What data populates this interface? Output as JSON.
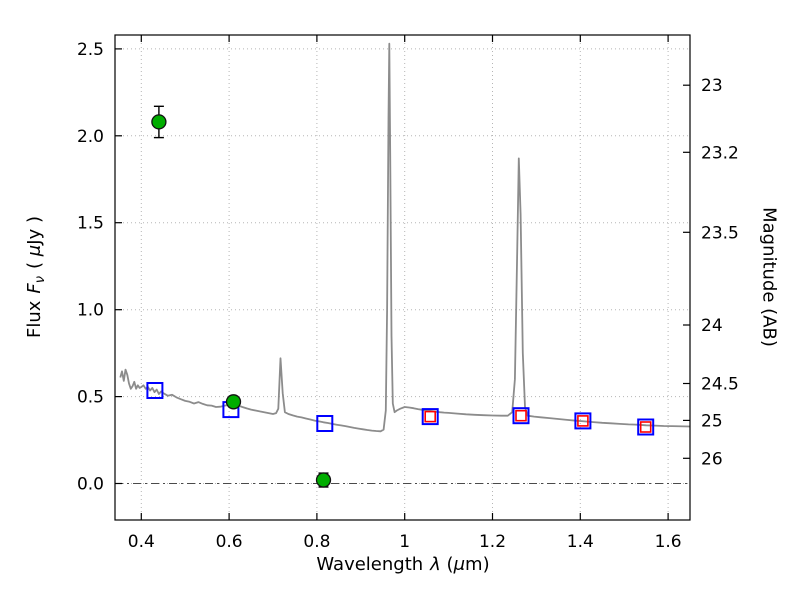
{
  "figure": {
    "background": "#ffffff"
  },
  "axis_labels": {
    "x": {
      "pre": "Wavelength",
      "symbol": "λ",
      "post": " (",
      "mu": "μ",
      "unit": "m)"
    },
    "left": {
      "pre": "Flux",
      "symbol": "F",
      "subscript": "ν",
      "open": "( ",
      "mu": "μ",
      "unit": "Jy )"
    },
    "right": "Magnitude (AB)"
  },
  "chart_data": {
    "type": "line",
    "title": "",
    "xlabel": "Wavelength λ (μm)",
    "ylabel": "Flux Fν ( μJy )",
    "ylabel_right": "Magnitude (AB)",
    "xlim": [
      0.34,
      1.65
    ],
    "ylim": [
      -0.21,
      2.58
    ],
    "grid": true,
    "legend": "none",
    "x_ticks": {
      "values": [
        0.4,
        0.6,
        0.8,
        1.0,
        1.2,
        1.4,
        1.6
      ],
      "labels": [
        "0.4",
        "0.6",
        "0.8",
        "1",
        "1.2",
        "1.4",
        "1.6"
      ]
    },
    "y_ticks_left": {
      "values": [
        0.0,
        0.5,
        1.0,
        1.5,
        2.0,
        2.5
      ],
      "labels": [
        "0.0",
        "0.5",
        "1.0",
        "1.5",
        "2.0",
        "2.5"
      ]
    },
    "y_ticks_right": {
      "labels": [
        "23",
        "23.2",
        "23.5",
        "24",
        "24.5",
        "25",
        "26"
      ],
      "flux_positions": [
        2.291,
        1.905,
        1.445,
        0.912,
        0.575,
        0.363,
        0.145
      ]
    },
    "series": [
      {
        "id": "spectrum",
        "name": "best-fit model spectrum",
        "type": "line",
        "color": "#8c8c8c",
        "points": [
          [
            0.352,
            0.61
          ],
          [
            0.356,
            0.645
          ],
          [
            0.36,
            0.59
          ],
          [
            0.364,
            0.655
          ],
          [
            0.368,
            0.625
          ],
          [
            0.372,
            0.575
          ],
          [
            0.376,
            0.545
          ],
          [
            0.38,
            0.56
          ],
          [
            0.384,
            0.585
          ],
          [
            0.388,
            0.545
          ],
          [
            0.392,
            0.565
          ],
          [
            0.396,
            0.55
          ],
          [
            0.4,
            0.555
          ],
          [
            0.405,
            0.565
          ],
          [
            0.41,
            0.545
          ],
          [
            0.415,
            0.555
          ],
          [
            0.42,
            0.535
          ],
          [
            0.425,
            0.55
          ],
          [
            0.43,
            0.525
          ],
          [
            0.435,
            0.54
          ],
          [
            0.44,
            0.515
          ],
          [
            0.445,
            0.53
          ],
          [
            0.45,
            0.52
          ],
          [
            0.46,
            0.505
          ],
          [
            0.47,
            0.51
          ],
          [
            0.48,
            0.495
          ],
          [
            0.49,
            0.485
          ],
          [
            0.5,
            0.475
          ],
          [
            0.51,
            0.47
          ],
          [
            0.52,
            0.46
          ],
          [
            0.53,
            0.468
          ],
          [
            0.54,
            0.458
          ],
          [
            0.55,
            0.45
          ],
          [
            0.56,
            0.448
          ],
          [
            0.57,
            0.44
          ],
          [
            0.58,
            0.442
          ],
          [
            0.59,
            0.448
          ],
          [
            0.6,
            0.452
          ],
          [
            0.61,
            0.458
          ],
          [
            0.62,
            0.45
          ],
          [
            0.63,
            0.44
          ],
          [
            0.64,
            0.432
          ],
          [
            0.65,
            0.425
          ],
          [
            0.66,
            0.42
          ],
          [
            0.67,
            0.415
          ],
          [
            0.68,
            0.41
          ],
          [
            0.69,
            0.405
          ],
          [
            0.7,
            0.4
          ],
          [
            0.707,
            0.405
          ],
          [
            0.712,
            0.43
          ],
          [
            0.717,
            0.72
          ],
          [
            0.722,
            0.52
          ],
          [
            0.727,
            0.41
          ],
          [
            0.735,
            0.4
          ],
          [
            0.745,
            0.392
          ],
          [
            0.755,
            0.385
          ],
          [
            0.765,
            0.38
          ],
          [
            0.775,
            0.374
          ],
          [
            0.785,
            0.368
          ],
          [
            0.795,
            0.362
          ],
          [
            0.805,
            0.357
          ],
          [
            0.815,
            0.352
          ],
          [
            0.825,
            0.348
          ],
          [
            0.835,
            0.343
          ],
          [
            0.845,
            0.338
          ],
          [
            0.855,
            0.334
          ],
          [
            0.865,
            0.33
          ],
          [
            0.875,
            0.325
          ],
          [
            0.885,
            0.32
          ],
          [
            0.895,
            0.316
          ],
          [
            0.905,
            0.312
          ],
          [
            0.915,
            0.308
          ],
          [
            0.925,
            0.304
          ],
          [
            0.935,
            0.302
          ],
          [
            0.945,
            0.3
          ],
          [
            0.952,
            0.31
          ],
          [
            0.957,
            0.42
          ],
          [
            0.96,
            1.0
          ],
          [
            0.963,
            2.1
          ],
          [
            0.965,
            2.53
          ],
          [
            0.967,
            1.9
          ],
          [
            0.97,
            0.85
          ],
          [
            0.973,
            0.46
          ],
          [
            0.977,
            0.41
          ],
          [
            0.982,
            0.42
          ],
          [
            0.99,
            0.43
          ],
          [
            1.0,
            0.44
          ],
          [
            1.01,
            0.437
          ],
          [
            1.02,
            0.433
          ],
          [
            1.03,
            0.428
          ],
          [
            1.04,
            0.424
          ],
          [
            1.05,
            0.421
          ],
          [
            1.06,
            0.417
          ],
          [
            1.07,
            0.413
          ],
          [
            1.08,
            0.41
          ],
          [
            1.09,
            0.408
          ],
          [
            1.1,
            0.406
          ],
          [
            1.12,
            0.402
          ],
          [
            1.14,
            0.398
          ],
          [
            1.16,
            0.395
          ],
          [
            1.18,
            0.393
          ],
          [
            1.2,
            0.391
          ],
          [
            1.22,
            0.39
          ],
          [
            1.235,
            0.39
          ],
          [
            1.245,
            0.41
          ],
          [
            1.251,
            0.6
          ],
          [
            1.256,
            1.3
          ],
          [
            1.26,
            1.87
          ],
          [
            1.264,
            1.55
          ],
          [
            1.269,
            0.75
          ],
          [
            1.274,
            0.44
          ],
          [
            1.28,
            0.39
          ],
          [
            1.295,
            0.385
          ],
          [
            1.31,
            0.381
          ],
          [
            1.33,
            0.376
          ],
          [
            1.35,
            0.371
          ],
          [
            1.37,
            0.366
          ],
          [
            1.39,
            0.361
          ],
          [
            1.41,
            0.357
          ],
          [
            1.43,
            0.353
          ],
          [
            1.45,
            0.349
          ],
          [
            1.47,
            0.346
          ],
          [
            1.49,
            0.343
          ],
          [
            1.51,
            0.34
          ],
          [
            1.53,
            0.338
          ],
          [
            1.55,
            0.335
          ],
          [
            1.57,
            0.333
          ],
          [
            1.59,
            0.331
          ],
          [
            1.61,
            0.33
          ],
          [
            1.65,
            0.328
          ]
        ]
      },
      {
        "id": "observed",
        "name": "observed photometry (green circles with error bars)",
        "type": "scatter-circle",
        "color": "#00ad00",
        "edge_color": "#111111",
        "points": [
          {
            "x": 0.44,
            "y": 2.08,
            "yerr": 0.09
          },
          {
            "x": 0.61,
            "y": 0.47,
            "yerr": 0.03
          },
          {
            "x": 0.815,
            "y": 0.02,
            "yerr": 0.04
          }
        ]
      },
      {
        "id": "model_blue",
        "name": "synthetic photometry (blue open squares)",
        "type": "scatter-square",
        "color": "#0000ff",
        "points": [
          [
            0.431,
            0.535
          ],
          [
            0.604,
            0.425
          ],
          [
            0.818,
            0.345
          ],
          [
            1.058,
            0.385
          ],
          [
            1.265,
            0.39
          ],
          [
            1.406,
            0.36
          ],
          [
            1.549,
            0.325
          ]
        ]
      },
      {
        "id": "model_red",
        "name": "synthetic photometry (red open squares)",
        "type": "scatter-square",
        "color": "#ff0000",
        "points": [
          [
            1.058,
            0.385
          ],
          [
            1.265,
            0.39
          ],
          [
            1.406,
            0.36
          ],
          [
            1.549,
            0.325
          ]
        ]
      }
    ]
  }
}
